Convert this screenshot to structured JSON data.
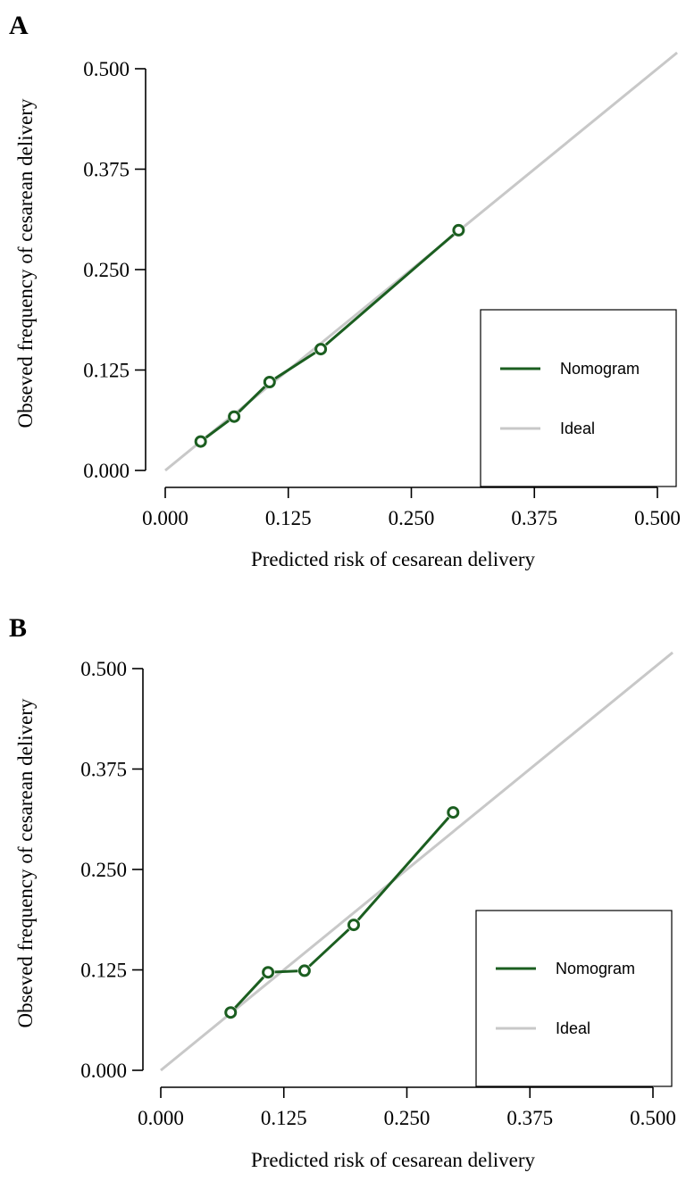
{
  "colors": {
    "nomogram": "#1b5e20",
    "ideal": "#c8c8c8",
    "axis": "#000000"
  },
  "chart_data": [
    {
      "panel": "A",
      "type": "line",
      "xlabel": "Predicted risk of cesarean delivery",
      "ylabel": "Obseved frequency of cesarean delivery",
      "xlim": [
        0,
        0.5
      ],
      "ylim": [
        0,
        0.5
      ],
      "xticks": [
        "0.000",
        "0.125",
        "0.250",
        "0.375",
        "0.500"
      ],
      "yticks": [
        "0.000",
        "0.125",
        "0.250",
        "0.375",
        "0.500"
      ],
      "legend": {
        "position": "bottom-right",
        "entries": [
          "Nomogram",
          "Ideal"
        ]
      },
      "series": [
        {
          "name": "Nomogram",
          "x": [
            0.036,
            0.07,
            0.106,
            0.158,
            0.298
          ],
          "y": [
            0.036,
            0.067,
            0.11,
            0.151,
            0.299
          ]
        },
        {
          "name": "Ideal",
          "x": [
            0,
            0.52
          ],
          "y": [
            0,
            0.52
          ]
        }
      ]
    },
    {
      "panel": "B",
      "type": "line",
      "xlabel": "Predicted risk of cesarean delivery",
      "ylabel": "Obseved frequency of cesarean delivery",
      "xlim": [
        0,
        0.5
      ],
      "ylim": [
        0,
        0.5
      ],
      "xticks": [
        "0.000",
        "0.125",
        "0.250",
        "0.375",
        "0.500"
      ],
      "yticks": [
        "0.000",
        "0.125",
        "0.250",
        "0.375",
        "0.500"
      ],
      "legend": {
        "position": "bottom-right",
        "entries": [
          "Nomogram",
          "Ideal"
        ]
      },
      "series": [
        {
          "name": "Nomogram",
          "x": [
            0.071,
            0.109,
            0.146,
            0.196,
            0.297
          ],
          "y": [
            0.072,
            0.122,
            0.124,
            0.181,
            0.321
          ]
        },
        {
          "name": "Ideal",
          "x": [
            0,
            0.52
          ],
          "y": [
            0,
            0.52
          ]
        }
      ]
    }
  ]
}
